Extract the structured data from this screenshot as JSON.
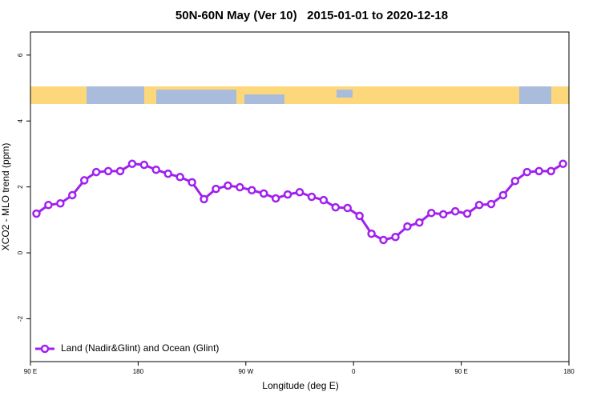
{
  "chart_data": {
    "type": "line",
    "title": "50N-60N May (Ver 10)   2015-01-01 to 2020-12-18",
    "xlabel": "Longitude (deg E)",
    "ylabel": "XCO2 - MLO trend (ppm)",
    "xlim": [
      90,
      540
    ],
    "xticks": [
      {
        "value": 90,
        "label": "90 E"
      },
      {
        "value": 180,
        "label": "180"
      },
      {
        "value": 270,
        "label": "90 W"
      },
      {
        "value": 360,
        "label": "0"
      },
      {
        "value": 450,
        "label": "90 E"
      },
      {
        "value": 540,
        "label": "180"
      }
    ],
    "ylim": [
      -3.3,
      6.7
    ],
    "yticks": [
      -2,
      0,
      2,
      4,
      6
    ],
    "legend": "bottom left",
    "series": [
      {
        "name": "Land (Nadir&Glint) and Ocean (Glint)",
        "color": "#a020f0",
        "x": [
          95,
          105,
          115,
          125,
          135,
          145,
          155,
          165,
          175,
          185,
          195,
          205,
          215,
          225,
          235,
          245,
          255,
          265,
          275,
          285,
          295,
          305,
          315,
          325,
          335,
          345,
          355,
          365,
          375,
          385,
          395,
          405,
          415,
          425,
          435,
          445,
          455,
          465,
          475,
          485,
          495,
          505,
          515,
          525,
          535
        ],
        "values": [
          1.19,
          1.45,
          1.5,
          1.75,
          2.2,
          2.45,
          2.48,
          2.48,
          2.7,
          2.67,
          2.52,
          2.4,
          2.3,
          2.14,
          1.63,
          1.94,
          2.04,
          1.99,
          1.9,
          1.8,
          1.65,
          1.77,
          1.84,
          1.7,
          1.6,
          1.38,
          1.36,
          1.12,
          0.58,
          0.39,
          0.48,
          0.8,
          0.92,
          1.21,
          1.17,
          1.26,
          1.19,
          1.45,
          1.48,
          1.75,
          2.18,
          2.45,
          2.48,
          2.48,
          2.7
        ]
      }
    ]
  }
}
